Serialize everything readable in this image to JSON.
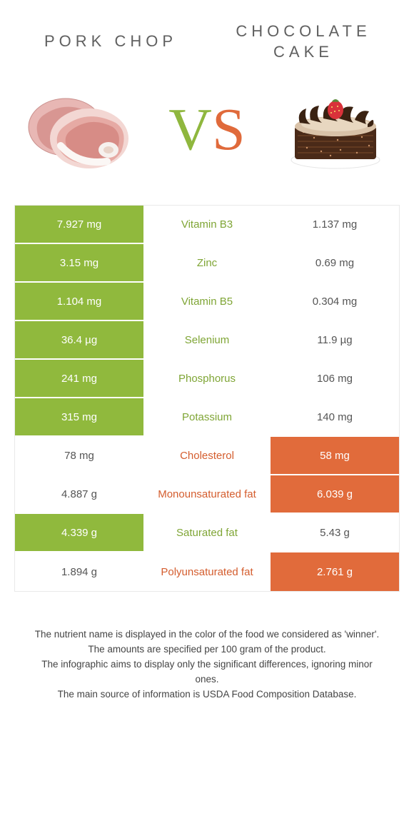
{
  "titles": {
    "left": "PORK CHOP",
    "right": "CHOCOLATE CAKE"
  },
  "vs": {
    "v": "V",
    "s": "S"
  },
  "colors": {
    "green_bg": "#90b93d",
    "orange_bg": "#e16b3b",
    "green_txt": "#7fa535",
    "orange_txt": "#d45d2e"
  },
  "rows": [
    {
      "left": "7.927 mg",
      "mid": "Vitamin B3",
      "right": "1.137 mg",
      "winner": "left"
    },
    {
      "left": "3.15 mg",
      "mid": "Zinc",
      "right": "0.69 mg",
      "winner": "left"
    },
    {
      "left": "1.104 mg",
      "mid": "Vitamin B5",
      "right": "0.304 mg",
      "winner": "left"
    },
    {
      "left": "36.4 µg",
      "mid": "Selenium",
      "right": "11.9 µg",
      "winner": "left"
    },
    {
      "left": "241 mg",
      "mid": "Phosphorus",
      "right": "106 mg",
      "winner": "left"
    },
    {
      "left": "315 mg",
      "mid": "Potassium",
      "right": "140 mg",
      "winner": "left"
    },
    {
      "left": "78 mg",
      "mid": "Cholesterol",
      "right": "58 mg",
      "winner": "right"
    },
    {
      "left": "4.887 g",
      "mid": "Monounsaturated fat",
      "right": "6.039 g",
      "winner": "right"
    },
    {
      "left": "4.339 g",
      "mid": "Saturated fat",
      "right": "5.43 g",
      "winner": "left"
    },
    {
      "left": "1.894 g",
      "mid": "Polyunsaturated fat",
      "right": "2.761 g",
      "winner": "right"
    }
  ],
  "footer": {
    "l1": "The nutrient name is displayed in the color of the food we considered as 'winner'.",
    "l2": "The amounts are specified per 100 gram of the product.",
    "l3": "The infographic aims to display only the significant differences, ignoring minor ones.",
    "l4": "The main source of information is USDA Food Composition Database."
  }
}
